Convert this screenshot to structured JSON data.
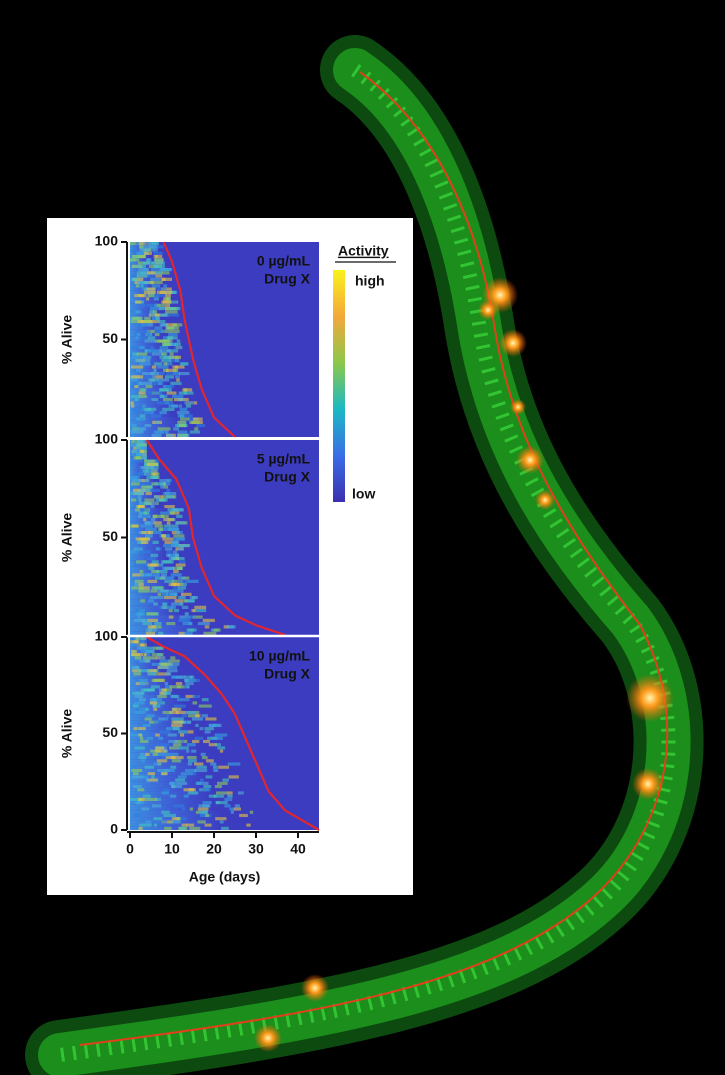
{
  "chart_data": [
    {
      "type": "line",
      "title": "0 µg/mL",
      "subtitle": "Drug X",
      "y_label": "% Alive",
      "x": [
        8,
        10,
        12,
        13,
        14,
        15,
        17,
        20,
        25
      ],
      "values": [
        100,
        90,
        75,
        60,
        50,
        40,
        25,
        10,
        0
      ],
      "color": "#e3262e",
      "xlim": [
        0,
        45
      ],
      "ylim": [
        0,
        100
      ],
      "yticks": [
        50,
        100
      ]
    },
    {
      "type": "line",
      "title": "5 µg/mL",
      "subtitle": "Drug X",
      "y_label": "% Alive",
      "x": [
        4,
        7,
        11,
        14,
        15,
        17,
        20,
        25,
        30,
        37
      ],
      "values": [
        100,
        90,
        80,
        65,
        50,
        35,
        20,
        10,
        5,
        0
      ],
      "color": "#e3262e",
      "xlim": [
        0,
        45
      ],
      "ylim": [
        0,
        100
      ],
      "yticks": [
        50,
        100
      ]
    },
    {
      "type": "line",
      "title": "10 µg/mL",
      "subtitle": "Drug X",
      "y_label": "% Alive",
      "x_label": "Age (days)",
      "x": [
        4,
        8,
        13,
        18,
        22,
        25,
        27,
        30,
        33,
        37,
        45
      ],
      "values": [
        100,
        95,
        90,
        80,
        70,
        60,
        50,
        35,
        20,
        10,
        0
      ],
      "color": "#e3262e",
      "xlim": [
        0,
        45
      ],
      "ylim": [
        0,
        100
      ],
      "yticks": [
        0,
        50,
        100
      ],
      "xticks": [
        0,
        10,
        20,
        30,
        40
      ]
    }
  ],
  "colorbar": {
    "title": "Activity",
    "max_label": "high",
    "min_label": "low"
  }
}
